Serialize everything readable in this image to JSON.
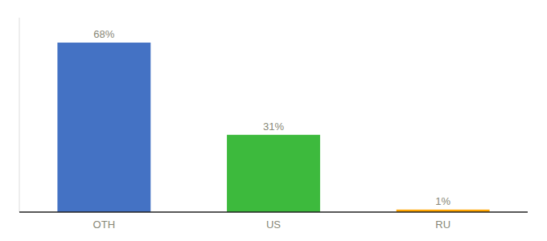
{
  "chart_data": {
    "type": "bar",
    "categories": [
      "OTH",
      "US",
      "RU"
    ],
    "values": [
      68,
      31,
      1
    ],
    "value_labels": [
      "68%",
      "31%",
      "1%"
    ],
    "colors": [
      "#4472c4",
      "#3dba3d",
      "#ffa500"
    ],
    "ylim": [
      0,
      78
    ],
    "data_labels": true,
    "tick_labels": "x"
  }
}
